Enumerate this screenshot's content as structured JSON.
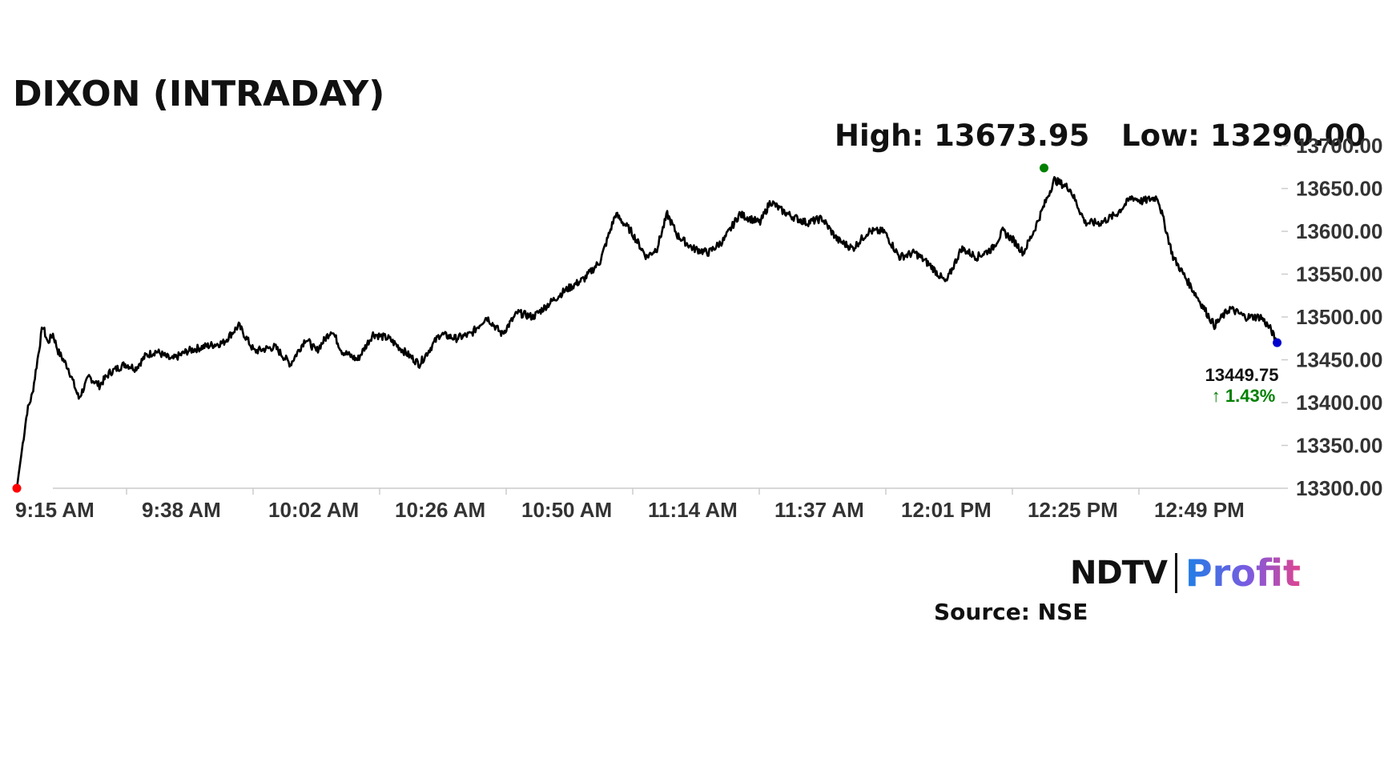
{
  "title": "DIXON (INTRADAY)",
  "high_label": "High: 13673.95",
  "low_label": "Low: 13290.00",
  "last_price": "13449.75",
  "change": "↑ 1.43%",
  "source": "Source: NSE",
  "logo": {
    "left": "NDTV",
    "right": "Profit"
  },
  "colors": {
    "line": "#000000",
    "start_marker": "#ff0000",
    "high_marker": "#008000",
    "end_marker": "#0000cc",
    "change": "#008000"
  },
  "chart_data": {
    "type": "line",
    "x_ticks": [
      "9:15 AM",
      "9:38 AM",
      "10:02 AM",
      "10:26 AM",
      "10:50 AM",
      "11:14 AM",
      "11:37 AM",
      "12:01 PM",
      "12:25 PM",
      "12:49 PM"
    ],
    "y_ticks": [
      "13300.00",
      "13350.00",
      "13400.00",
      "13450.00",
      "13500.00",
      "13550.00",
      "13600.00",
      "13650.00",
      "13700.00"
    ],
    "ylim": [
      13300,
      13700
    ],
    "x_range_minutes": [
      0,
      245
    ],
    "grid": false,
    "series": [
      {
        "x": [
          0,
          1,
          2,
          3,
          4,
          5,
          6,
          7,
          8,
          10,
          12,
          14,
          16,
          18,
          21,
          23,
          25,
          27,
          30,
          33,
          36,
          40,
          43,
          46,
          50,
          53,
          56,
          58,
          61,
          63,
          66,
          69,
          72,
          75,
          78,
          82,
          85,
          88,
          91,
          94,
          97,
          100,
          103,
          106,
          110,
          113,
          116,
          119,
          122,
          124,
          126,
          128,
          131,
          134,
          137,
          140,
          142,
          144,
          146,
          148,
          150,
          153,
          156,
          159,
          162,
          165,
          168,
          171,
          174,
          177,
          180,
          183,
          186,
          189,
          191,
          193,
          195,
          197,
          199,
          201,
          204,
          207,
          210,
          213,
          216,
          218,
          221,
          224,
          226,
          229,
          232,
          235,
          238,
          241,
          243,
          244
        ],
        "y": [
          13300,
          13345,
          13390,
          13410,
          13450,
          13490,
          13470,
          13480,
          13460,
          13440,
          13405,
          13430,
          13420,
          13435,
          13445,
          13440,
          13455,
          13460,
          13450,
          13460,
          13465,
          13470,
          13490,
          13460,
          13465,
          13445,
          13475,
          13460,
          13485,
          13460,
          13450,
          13480,
          13475,
          13460,
          13445,
          13480,
          13475,
          13480,
          13500,
          13480,
          13505,
          13500,
          13515,
          13530,
          13545,
          13565,
          13620,
          13600,
          13570,
          13580,
          13620,
          13595,
          13580,
          13575,
          13590,
          13620,
          13615,
          13610,
          13635,
          13625,
          13618,
          13610,
          13615,
          13590,
          13580,
          13600,
          13600,
          13570,
          13575,
          13560,
          13540,
          13580,
          13570,
          13580,
          13600,
          13590,
          13575,
          13600,
          13630,
          13660,
          13650,
          13610,
          13610,
          13620,
          13640,
          13635,
          13640,
          13570,
          13550,
          13520,
          13490,
          13510,
          13500,
          13500,
          13485,
          13470
        ],
        "color": "#000000"
      }
    ],
    "high": 13673.95,
    "low": 13290.0,
    "last": 13449.75,
    "change_pct": 1.43
  }
}
